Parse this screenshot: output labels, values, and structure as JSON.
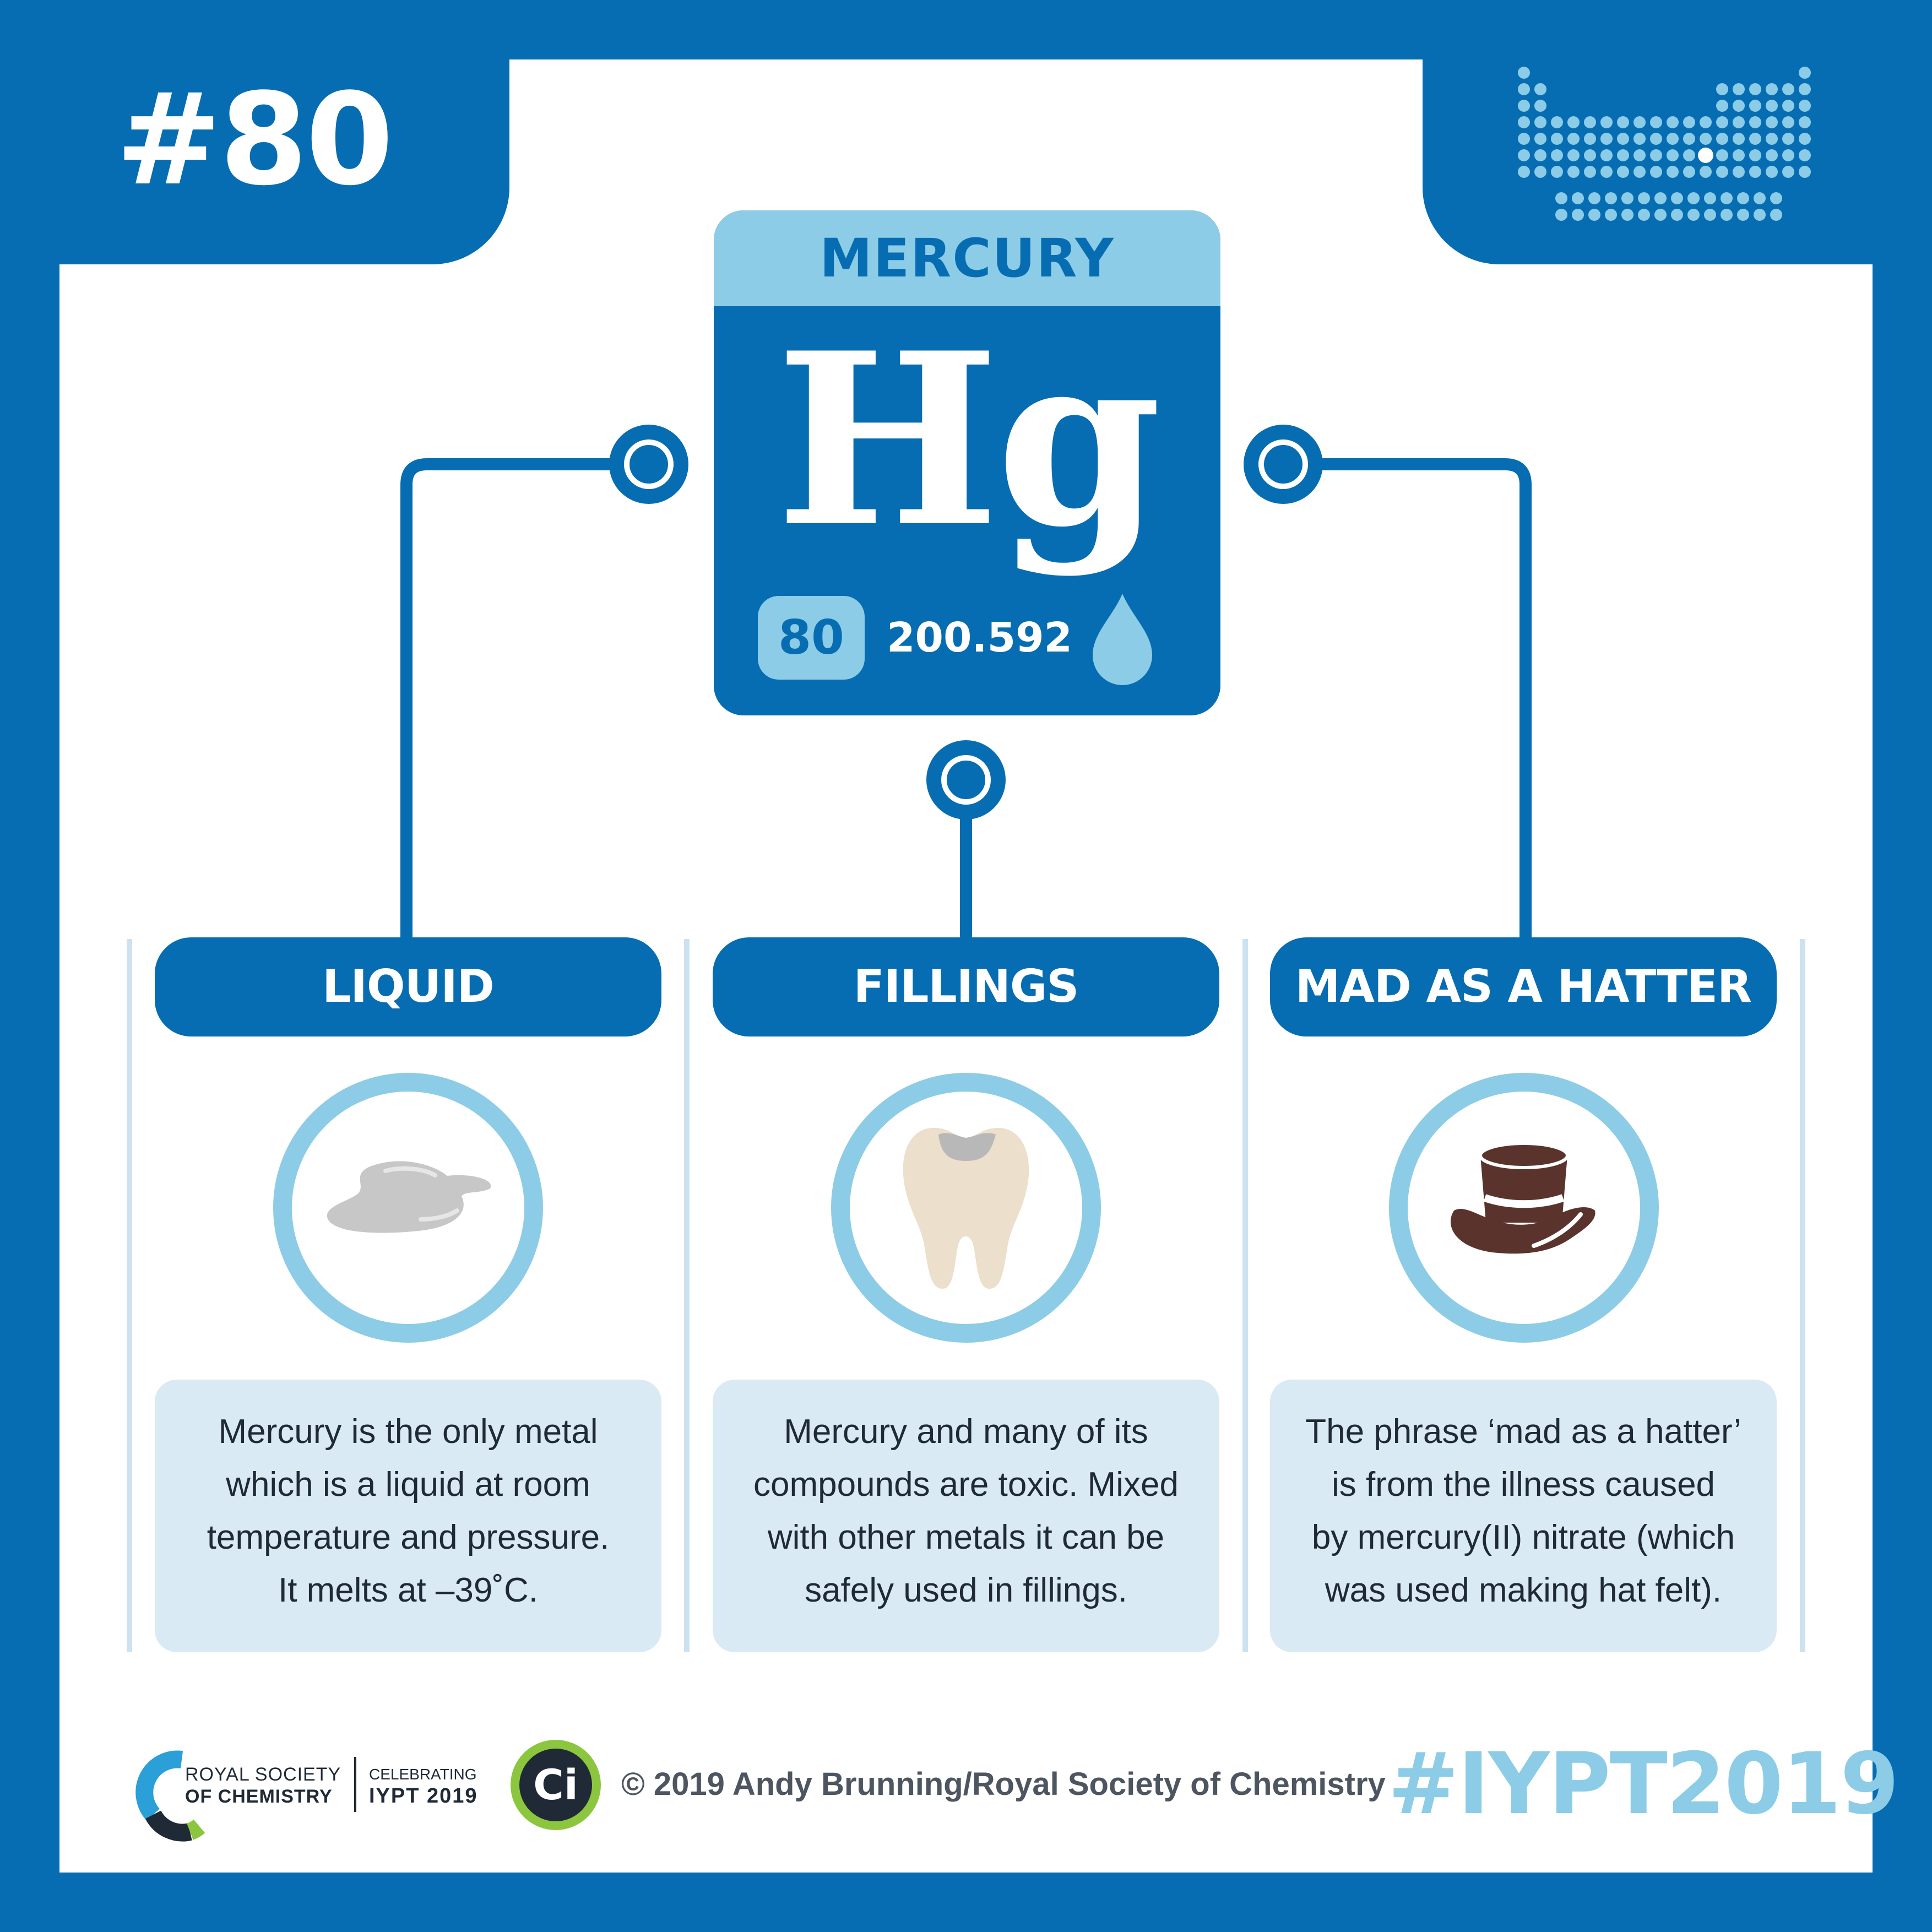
{
  "colors": {
    "brand_blue": "#076db2",
    "light_blue": "#8dcce6",
    "pale_blue": "#daeaf4",
    "text_dark": "#1f2a36",
    "ci_green": "#8cc63f"
  },
  "badge": {
    "number": "#80"
  },
  "periodic_table_icon": "periodic-table-icon",
  "element": {
    "name": "MERCURY",
    "symbol": "Hg",
    "atomic_number": "80",
    "atomic_mass": "200.592",
    "state_icon": "liquid-drop-icon"
  },
  "columns": [
    {
      "title": "LIQUID",
      "icon": "mercury-puddle-icon",
      "text_lines": [
        "Mercury is the only metal",
        "which is a liquid at room",
        "temperature and pressure.",
        "It melts at –39˚C."
      ]
    },
    {
      "title": "FILLINGS",
      "icon": "tooth-filling-icon",
      "text_lines": [
        "Mercury and many of its",
        "compounds are toxic. Mixed",
        "with other metals it can be",
        "safely used in fillings."
      ]
    },
    {
      "title": "MAD AS A HATTER",
      "icon": "top-hat-icon",
      "text_lines": [
        "The phrase ‘mad as a hatter’",
        "is from the illness caused",
        "by mercury(II) nitrate (which",
        "was used making hat felt)."
      ]
    }
  ],
  "footer": {
    "rsc_line1": "ROYAL SOCIETY",
    "rsc_line2": "OF CHEMISTRY",
    "iypt_line1": "CELEBRATING",
    "iypt_line2": "IYPT 2019",
    "ci_label": "Ci",
    "copyright": "© 2019 Andy Brunning/Royal Society of Chemistry",
    "hashtag": "#IYPT2019"
  }
}
